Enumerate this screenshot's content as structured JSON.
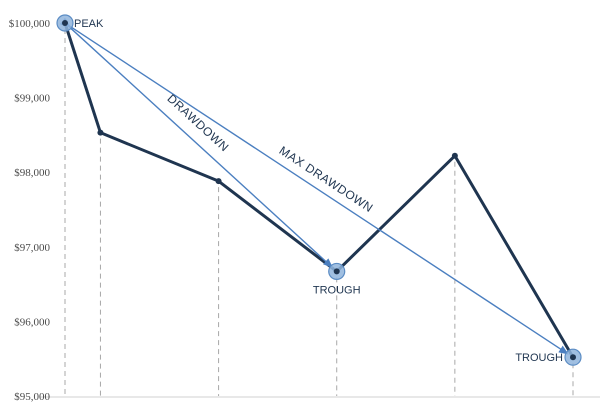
{
  "chart_data": {
    "type": "line",
    "title": "",
    "xlabel": "",
    "ylabel": "",
    "ylim": [
      95000,
      100000
    ],
    "yticks": [
      {
        "value": 100000,
        "label": "$100,000"
      },
      {
        "value": 99000,
        "label": "$99,000"
      },
      {
        "value": 98000,
        "label": "$98,000"
      },
      {
        "value": 97000,
        "label": "$97,000"
      },
      {
        "value": 96000,
        "label": "$96,000"
      },
      {
        "value": 95000,
        "label": "$95,000"
      }
    ],
    "grid": {
      "vertical_dashed_drop_lines": true
    },
    "x": [
      0,
      0.6,
      2.6,
      4.6,
      6.6,
      8.6
    ],
    "xlim": [
      0,
      8.6
    ],
    "series": [
      {
        "values": [
          100000,
          98530,
          97880,
          96670,
          98220,
          95520
        ],
        "color": "#1f3550"
      }
    ],
    "highlighted_points": [
      {
        "index": 0,
        "label": "PEAK"
      },
      {
        "index": 3,
        "label": "TROUGH"
      },
      {
        "index": 5,
        "label": "TROUGH"
      }
    ],
    "annotations": [
      {
        "label": "DRAWDOWN",
        "from_index": 0,
        "to_index": 3,
        "color": "#4b7fc0"
      },
      {
        "label": "MAX DRAWDOWN",
        "from_index": 0,
        "to_index": 5,
        "color": "#4b7fc0"
      }
    ]
  }
}
